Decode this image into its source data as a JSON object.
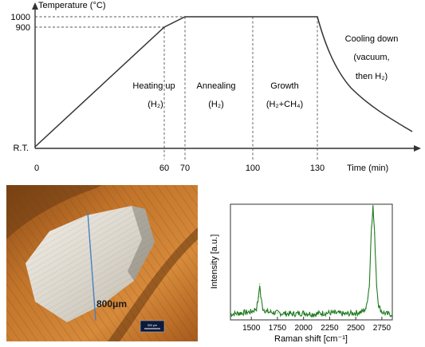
{
  "temperature_profile": {
    "y_axis_title": "Temperature (°C)",
    "x_axis_title": "Time (min)",
    "y_tick_labels": {
      "t1000": "1000",
      "t900": "900",
      "rt": "R.T."
    },
    "x_tick_labels": {
      "m0": "0",
      "m60": "60",
      "m70": "70",
      "m100": "100",
      "m130": "130"
    },
    "stages": {
      "heating_title": "Heating up",
      "heating_gas": "(H₂)",
      "annealing_title": "Annealing",
      "annealing_gas": "(H₂)",
      "growth_title": "Growth",
      "growth_gas": "(H₂+CH₄)",
      "cooling_line1": "Cooling down",
      "cooling_line2": "(vacuum,",
      "cooling_line3": "then H₂)"
    },
    "colors": {
      "line": "#333333",
      "dashed": "#555555"
    }
  },
  "micrograph": {
    "dimension_label": "800μm",
    "scalebar_label": "500 μm",
    "colors": {
      "background": "#c06d1e",
      "crystal": "#e8e2d8",
      "measure_line": "#4a7fc0"
    }
  },
  "chart_data": {
    "type": "line",
    "title": "",
    "xlabel": "Raman shift [cm⁻¹]",
    "ylabel": "Intensity [a.u.]",
    "xlim": [
      1300,
      2850
    ],
    "ylim": [
      0,
      1
    ],
    "x_ticks": [
      "1500",
      "1750",
      "2000",
      "2250",
      "2500",
      "2750"
    ],
    "series": [
      {
        "color": "#1f7a1f",
        "x": [
          1300,
          1400,
          1500,
          1550,
          1570,
          1580,
          1590,
          1610,
          1650,
          1750,
          1900,
          2000,
          2100,
          2200,
          2300,
          2400,
          2500,
          2560,
          2600,
          2630,
          2650,
          2665,
          2680,
          2700,
          2720,
          2750,
          2800,
          2850
        ],
        "values": [
          0.05,
          0.06,
          0.07,
          0.1,
          0.2,
          0.31,
          0.2,
          0.1,
          0.07,
          0.06,
          0.05,
          0.06,
          0.05,
          0.06,
          0.06,
          0.05,
          0.06,
          0.07,
          0.1,
          0.3,
          0.8,
          0.98,
          0.75,
          0.3,
          0.12,
          0.07,
          0.05,
          0.05
        ]
      }
    ]
  }
}
